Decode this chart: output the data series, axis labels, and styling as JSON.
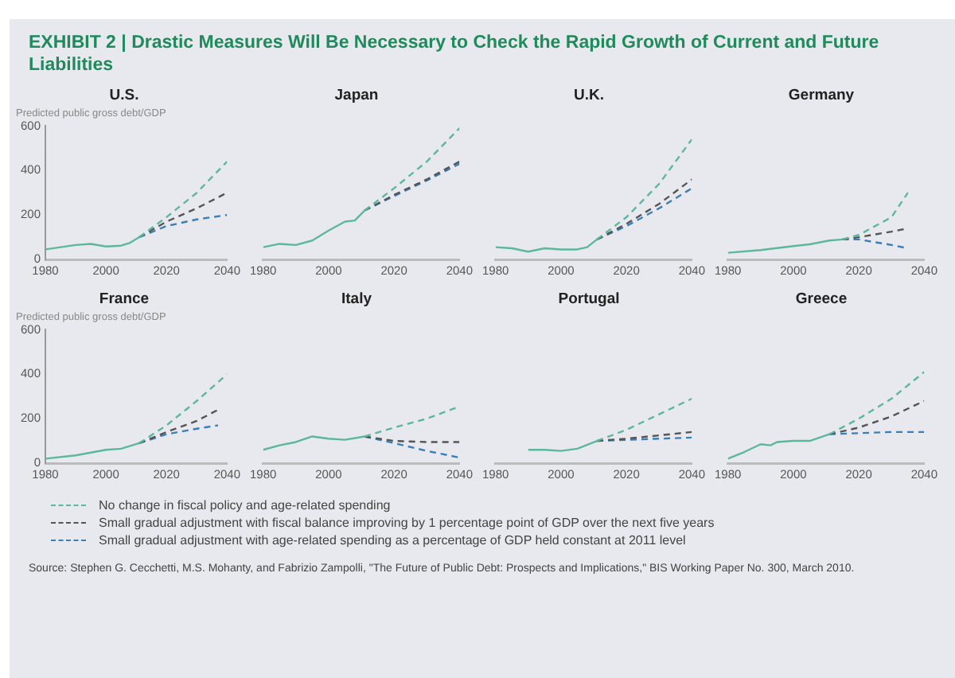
{
  "chart_data": [
    {
      "type": "other",
      "title": "EXHIBIT 2 | Drastic Measures Will Be Necessary to Check the Rapid Growth of Current and Future Liabilities"
    },
    {
      "type": "line",
      "title": "U.S.",
      "ylabel": "Predicted public gross debt/GDP",
      "xlim": [
        1980,
        2040
      ],
      "xticks": [
        1980,
        2000,
        2020,
        2040
      ],
      "ylim": [
        0,
        600
      ],
      "yticks": [
        0,
        200,
        400,
        600
      ],
      "grid": false,
      "legend": "bottom",
      "series": [
        {
          "color": "#5cb89a",
          "line_style": "solid",
          "x": [
            1980,
            1985,
            1990,
            1995,
            2000,
            2005,
            2008,
            2011
          ],
          "values": [
            45,
            55,
            65,
            70,
            58,
            62,
            75,
            100
          ]
        },
        {
          "name": "No change in fiscal policy and age-related spending",
          "color": "#5cb89a",
          "line_style": "dashed",
          "x": [
            2011,
            2020,
            2030,
            2040
          ],
          "values": [
            100,
            190,
            300,
            440
          ]
        },
        {
          "name": "Small gradual adjustment with fiscal balance improving by 1 percentage point of GDP over the next five years",
          "color": "#555555",
          "line_style": "dashed",
          "x": [
            2011,
            2020,
            2030,
            2040
          ],
          "values": [
            100,
            170,
            230,
            300
          ]
        },
        {
          "name": "Small gradual adjustment with age-related spending as a percentage of GDP held constant at 2011 level",
          "color": "#3a7fb5",
          "line_style": "dashed",
          "x": [
            2011,
            2020,
            2030,
            2040
          ],
          "values": [
            100,
            150,
            180,
            200
          ]
        }
      ]
    },
    {
      "type": "line",
      "title": "Japan",
      "xlim": [
        1980,
        2040
      ],
      "xticks": [
        1980,
        2000,
        2020,
        2040
      ],
      "ylim": [
        0,
        600
      ],
      "tick_labels": "x",
      "grid": false,
      "series": [
        {
          "color": "#5cb89a",
          "line_style": "solid",
          "x": [
            1980,
            1985,
            1990,
            1995,
            2000,
            2005,
            2008,
            2011
          ],
          "values": [
            55,
            70,
            65,
            85,
            130,
            170,
            175,
            220
          ]
        },
        {
          "color": "#5cb89a",
          "line_style": "dashed",
          "x": [
            2011,
            2020,
            2030,
            2040
          ],
          "values": [
            220,
            320,
            440,
            590
          ]
        },
        {
          "color": "#555555",
          "line_style": "dashed",
          "x": [
            2011,
            2020,
            2030,
            2040
          ],
          "values": [
            220,
            290,
            360,
            440
          ]
        },
        {
          "color": "#3a7fb5",
          "line_style": "dashed",
          "x": [
            2011,
            2020,
            2030,
            2040
          ],
          "values": [
            220,
            285,
            355,
            430
          ]
        }
      ]
    },
    {
      "type": "line",
      "title": "U.K.",
      "xlim": [
        1980,
        2040
      ],
      "xticks": [
        1980,
        2000,
        2020,
        2040
      ],
      "ylim": [
        0,
        600
      ],
      "tick_labels": "x",
      "grid": false,
      "series": [
        {
          "color": "#5cb89a",
          "line_style": "solid",
          "x": [
            1980,
            1985,
            1990,
            1995,
            2000,
            2005,
            2008,
            2011
          ],
          "values": [
            55,
            50,
            35,
            50,
            45,
            45,
            55,
            90
          ]
        },
        {
          "color": "#5cb89a",
          "line_style": "dashed",
          "x": [
            2011,
            2020,
            2030,
            2040
          ],
          "values": [
            90,
            190,
            340,
            540
          ]
        },
        {
          "color": "#555555",
          "line_style": "dashed",
          "x": [
            2011,
            2020,
            2030,
            2040
          ],
          "values": [
            90,
            160,
            250,
            360
          ]
        },
        {
          "color": "#3a7fb5",
          "line_style": "dashed",
          "x": [
            2011,
            2020,
            2030,
            2040
          ],
          "values": [
            90,
            150,
            230,
            320
          ]
        }
      ]
    },
    {
      "type": "line",
      "title": "Germany",
      "xlim": [
        1980,
        2040
      ],
      "xticks": [
        1980,
        2000,
        2020,
        2040
      ],
      "ylim": [
        0,
        600
      ],
      "tick_labels": "x",
      "grid": false,
      "series": [
        {
          "color": "#5cb89a",
          "line_style": "solid",
          "x": [
            1980,
            1990,
            2000,
            2005,
            2011,
            2015
          ],
          "values": [
            30,
            42,
            60,
            68,
            85,
            90
          ]
        },
        {
          "color": "#5cb89a",
          "line_style": "dashed",
          "x": [
            2015,
            2020,
            2030,
            2035
          ],
          "values": [
            90,
            110,
            190,
            300
          ]
        },
        {
          "color": "#555555",
          "line_style": "dashed",
          "x": [
            2015,
            2020,
            2030,
            2035
          ],
          "values": [
            90,
            100,
            125,
            140
          ]
        },
        {
          "color": "#3a7fb5",
          "line_style": "dashed",
          "x": [
            2015,
            2020,
            2030,
            2035
          ],
          "values": [
            90,
            90,
            65,
            50
          ]
        }
      ]
    },
    {
      "type": "line",
      "title": "France",
      "ylabel": "Predicted public gross debt/GDP",
      "xlim": [
        1980,
        2040
      ],
      "xticks": [
        1980,
        2000,
        2020,
        2040
      ],
      "ylim": [
        0,
        600
      ],
      "yticks": [
        0,
        200,
        400,
        600
      ],
      "grid": false,
      "series": [
        {
          "color": "#5cb89a",
          "line_style": "solid",
          "x": [
            1980,
            1990,
            2000,
            2005,
            2011
          ],
          "values": [
            20,
            35,
            60,
            65,
            90
          ]
        },
        {
          "color": "#5cb89a",
          "line_style": "dashed",
          "x": [
            2011,
            2020,
            2030,
            2040
          ],
          "values": [
            90,
            170,
            280,
            400
          ]
        },
        {
          "color": "#555555",
          "line_style": "dashed",
          "x": [
            2011,
            2020,
            2030,
            2037
          ],
          "values": [
            90,
            140,
            190,
            240
          ]
        },
        {
          "color": "#3a7fb5",
          "line_style": "dashed",
          "x": [
            2011,
            2020,
            2030,
            2037
          ],
          "values": [
            90,
            130,
            155,
            170
          ]
        }
      ]
    },
    {
      "type": "line",
      "title": "Italy",
      "xlim": [
        1980,
        2040
      ],
      "xticks": [
        1980,
        2000,
        2020,
        2040
      ],
      "ylim": [
        0,
        600
      ],
      "tick_labels": "x",
      "grid": false,
      "series": [
        {
          "color": "#5cb89a",
          "line_style": "solid",
          "x": [
            1980,
            1985,
            1990,
            1995,
            2000,
            2005,
            2011
          ],
          "values": [
            60,
            80,
            95,
            120,
            110,
            105,
            120
          ]
        },
        {
          "color": "#5cb89a",
          "line_style": "dashed",
          "x": [
            2011,
            2020,
            2030,
            2040
          ],
          "values": [
            120,
            160,
            200,
            255
          ]
        },
        {
          "color": "#555555",
          "line_style": "dashed",
          "x": [
            2011,
            2020,
            2030,
            2040
          ],
          "values": [
            120,
            100,
            95,
            95
          ]
        },
        {
          "color": "#3a7fb5",
          "line_style": "dashed",
          "x": [
            2011,
            2020,
            2030,
            2040
          ],
          "values": [
            120,
            90,
            55,
            25
          ]
        }
      ]
    },
    {
      "type": "line",
      "title": "Portugal",
      "xlim": [
        1980,
        2040
      ],
      "xticks": [
        1980,
        2000,
        2020,
        2040
      ],
      "ylim": [
        0,
        600
      ],
      "tick_labels": "x",
      "grid": false,
      "series": [
        {
          "color": "#5cb89a",
          "line_style": "solid",
          "x": [
            1990,
            1995,
            2000,
            2005,
            2011
          ],
          "values": [
            60,
            60,
            55,
            65,
            100
          ]
        },
        {
          "color": "#5cb89a",
          "line_style": "dashed",
          "x": [
            2011,
            2020,
            2030,
            2040
          ],
          "values": [
            100,
            150,
            220,
            290
          ]
        },
        {
          "color": "#555555",
          "line_style": "dashed",
          "x": [
            2011,
            2020,
            2030,
            2040
          ],
          "values": [
            100,
            110,
            125,
            140
          ]
        },
        {
          "color": "#3a7fb5",
          "line_style": "dashed",
          "x": [
            2011,
            2020,
            2030,
            2040
          ],
          "values": [
            100,
            105,
            110,
            115
          ]
        }
      ]
    },
    {
      "type": "line",
      "title": "Greece",
      "xlim": [
        1980,
        2040
      ],
      "xticks": [
        1980,
        2000,
        2020,
        2040
      ],
      "ylim": [
        0,
        600
      ],
      "tick_labels": "x",
      "grid": false,
      "series": [
        {
          "color": "#5cb89a",
          "line_style": "solid",
          "x": [
            1980,
            1985,
            1990,
            1993,
            1995,
            2000,
            2005,
            2011
          ],
          "values": [
            20,
            50,
            85,
            80,
            95,
            100,
            100,
            130
          ]
        },
        {
          "color": "#5cb89a",
          "line_style": "dashed",
          "x": [
            2011,
            2020,
            2030,
            2040
          ],
          "values": [
            130,
            200,
            290,
            410
          ]
        },
        {
          "color": "#555555",
          "line_style": "dashed",
          "x": [
            2011,
            2020,
            2030,
            2040
          ],
          "values": [
            130,
            160,
            210,
            280
          ]
        },
        {
          "color": "#3a7fb5",
          "line_style": "dashed",
          "x": [
            2011,
            2020,
            2030,
            2040
          ],
          "values": [
            130,
            135,
            140,
            140
          ]
        }
      ]
    },
    {
      "type": "other",
      "annotations": [
        "Source: Stephen G. Cecchetti, M.S. Mohanty, and Fabrizio Zampolli, \"The Future of Public Debt: Prospects and Implications,\" BIS Working Paper No. 300, March 2010."
      ]
    }
  ]
}
